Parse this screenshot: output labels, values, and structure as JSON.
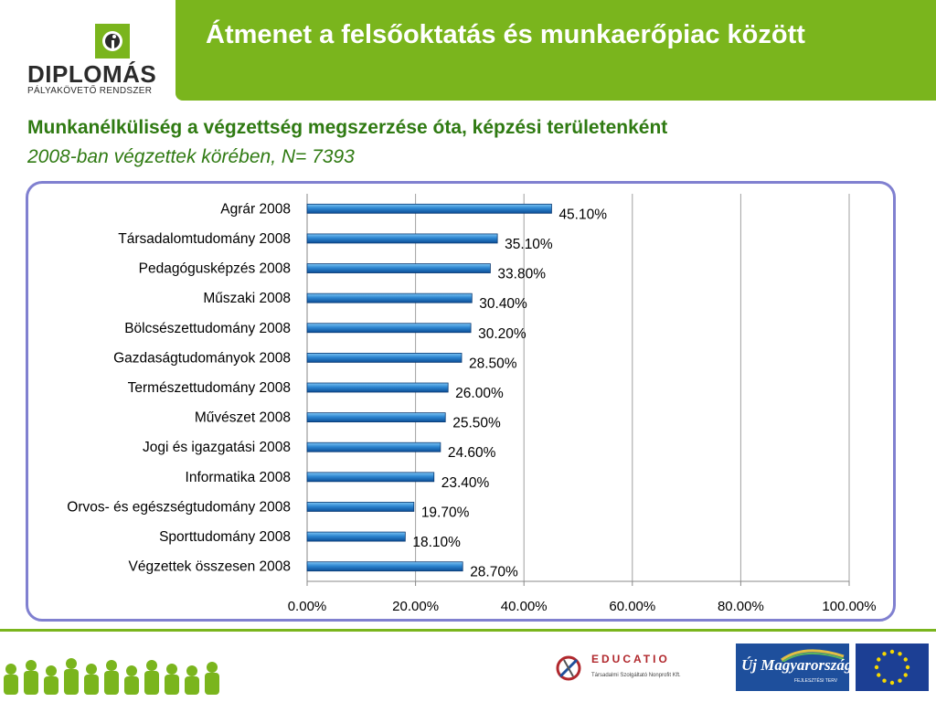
{
  "logo": {
    "title": "DIPLOMÁS",
    "subtitle": "PÁLYAKÖVETŐ  RENDSZER"
  },
  "header": {
    "title": "Átmenet a felsőoktatás és munkaerőpiac között"
  },
  "slide": {
    "subtitle": "Munkanélküliség a végzettség megszerzése óta, képzési területenként",
    "subtitle2": "2008-ban végzettek körében, N= 7393"
  },
  "colors": {
    "brand_green": "#7ab51d",
    "subtitle_green": "#2f7a12",
    "frame": "#8080d0",
    "bar": "#2e86d0"
  },
  "chart_data": {
    "type": "bar",
    "orientation": "horizontal",
    "categories": [
      "Agrár 2008",
      "Társadalomtudomány 2008",
      "Pedagógusképzés 2008",
      "Műszaki 2008",
      "Bölcsészettudomány 2008",
      "Gazdaságtudományok 2008",
      "Természettudomány 2008",
      "Művészet 2008",
      "Jogi és igazgatási 2008",
      "Informatika 2008",
      "Orvos- és egészségtudomány 2008",
      "Sporttudomány 2008",
      "Végzettek összesen 2008"
    ],
    "values": [
      45.1,
      35.1,
      33.8,
      30.4,
      30.2,
      28.5,
      26.0,
      25.5,
      24.6,
      23.4,
      19.7,
      18.1,
      28.7
    ],
    "value_labels": [
      "45.10%",
      "35.10%",
      "33.80%",
      "30.40%",
      "30.20%",
      "28.50%",
      "26.00%",
      "25.50%",
      "24.60%",
      "23.40%",
      "19.70%",
      "18.10%",
      "28.70%"
    ],
    "xlim": [
      0,
      100
    ],
    "xticks": [
      0,
      20,
      40,
      60,
      80,
      100
    ],
    "xtick_labels": [
      "0.00%",
      "20.00%",
      "40.00%",
      "60.00%",
      "80.00%",
      "100.00%"
    ],
    "grid": "vertical",
    "legend": "none"
  },
  "footer": {
    "educatio_name": "EDUCATIO",
    "educatio_sub": "Társadalmi Szolgáltató Nonprofit Kft.",
    "umft": "Új Magyarország",
    "umft_sub": "FEJLESZTÉSI TERV"
  }
}
